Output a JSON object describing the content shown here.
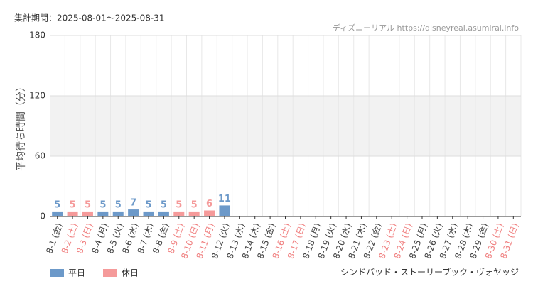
{
  "header": {
    "period": "集計期間：2025-08-01～2025-08-31",
    "source": "ディズニーリアル https://disneyreal.asumirai.info"
  },
  "chart_data": {
    "type": "bar",
    "y_label": "平均待ち時間（分）",
    "subtitle": "シンドバッド・ストーリーブック・ヴォヤッジ",
    "categories": [
      "8-1 (金)",
      "8-2 (土)",
      "8-3 (日)",
      "8-4 (月)",
      "8-5 (火)",
      "8-6 (水)",
      "8-7 (木)",
      "8-8 (金)",
      "8-9 (土)",
      "8-10 (日)",
      "8-11 (月)",
      "8-12 (火)",
      "8-13 (水)",
      "8-14 (木)",
      "8-15 (金)",
      "8-16 (土)",
      "8-17 (日)",
      "8-18 (月)",
      "8-19 (火)",
      "8-20 (水)",
      "8-21 (木)",
      "8-22 (金)",
      "8-23 (土)",
      "8-24 (日)",
      "8-25 (月)",
      "8-26 (火)",
      "8-27 (水)",
      "8-28 (木)",
      "8-29 (金)",
      "8-30 (土)",
      "8-31 (日)"
    ],
    "category_colors": [
      "#444444",
      "#f08080",
      "#f08080",
      "#444444",
      "#444444",
      "#444444",
      "#444444",
      "#444444",
      "#f08080",
      "#f08080",
      "#f08080",
      "#444444",
      "#444444",
      "#444444",
      "#444444",
      "#f08080",
      "#f08080",
      "#444444",
      "#444444",
      "#444444",
      "#444444",
      "#444444",
      "#f08080",
      "#f08080",
      "#444444",
      "#444444",
      "#444444",
      "#444444",
      "#444444",
      "#f08080",
      "#f08080"
    ],
    "series": [
      {
        "name": "平日",
        "color": "#6c99c9",
        "values": [
          5,
          null,
          null,
          5,
          5,
          7,
          5,
          5,
          null,
          null,
          null,
          11,
          null,
          null,
          null,
          null,
          null,
          null,
          null,
          null,
          null,
          null,
          null,
          null,
          null,
          null,
          null,
          null,
          null,
          null,
          null
        ]
      },
      {
        "name": "休日",
        "color": "#f59a9a",
        "values": [
          null,
          5,
          5,
          null,
          null,
          null,
          null,
          null,
          5,
          5,
          6,
          null,
          null,
          null,
          null,
          null,
          null,
          null,
          null,
          null,
          null,
          null,
          null,
          null,
          null,
          null,
          null,
          null,
          null,
          null,
          null
        ]
      }
    ],
    "ylim": [
      0,
      180
    ],
    "yticks": [
      0,
      60,
      120,
      180
    ],
    "grid": true,
    "alternate_grid": true
  }
}
